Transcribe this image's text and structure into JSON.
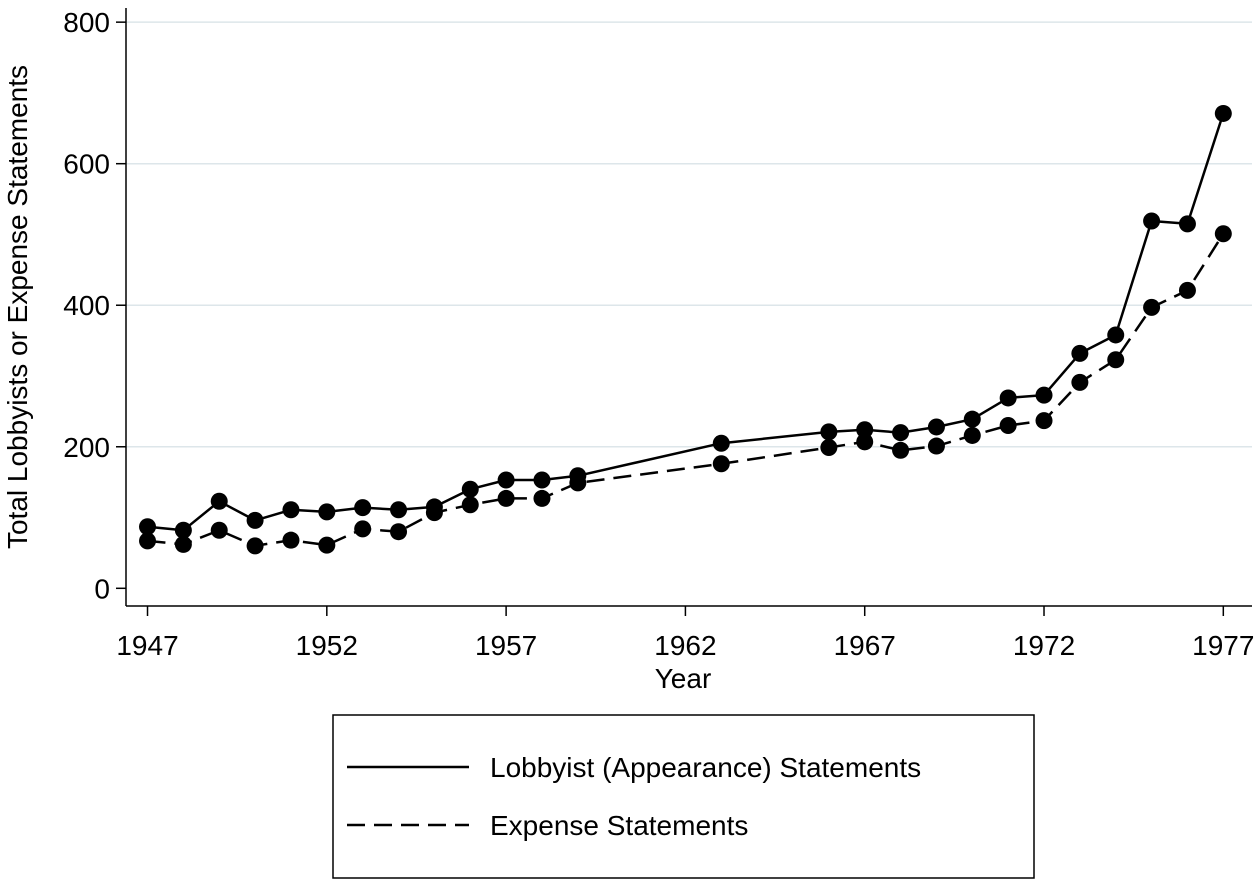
{
  "chart_data": {
    "type": "line",
    "xlabel": "Year",
    "ylabel": "Total Lobbyists or Expense Statements",
    "xlim": [
      1946.4,
      1977.8
    ],
    "ylim": [
      -25,
      820
    ],
    "xticks": [
      1947,
      1952,
      1957,
      1962,
      1967,
      1972,
      1977
    ],
    "yticks": [
      0,
      200,
      400,
      600,
      800
    ],
    "grid": "horizontal",
    "legend": "bottom",
    "series": [
      {
        "name": "Lobbyist (Appearance) Statements",
        "line": "solid",
        "color": "#000000",
        "x": [
          1947,
          1948,
          1949,
          1950,
          1951,
          1952,
          1953,
          1954,
          1955,
          1956,
          1957,
          1958,
          1959,
          1963,
          1966,
          1967,
          1968,
          1969,
          1970,
          1971,
          1972,
          1973,
          1974,
          1975,
          1976,
          1977
        ],
        "y": [
          87,
          82,
          123,
          96,
          111,
          108,
          114,
          111,
          115,
          140,
          153,
          153,
          159,
          205,
          221,
          224,
          220,
          228,
          239,
          269,
          273,
          332,
          358,
          519,
          515,
          671
        ]
      },
      {
        "name": "Expense Statements",
        "line": "dashed",
        "color": "#000000",
        "x": [
          1947,
          1948,
          1949,
          1950,
          1951,
          1952,
          1953,
          1954,
          1955,
          1956,
          1957,
          1958,
          1959,
          1963,
          1966,
          1967,
          1968,
          1969,
          1970,
          1971,
          1972,
          1973,
          1974,
          1975,
          1976,
          1977
        ],
        "y": [
          67,
          62,
          82,
          60,
          68,
          61,
          84,
          80,
          107,
          118,
          127,
          127,
          149,
          176,
          199,
          207,
          195,
          201,
          216,
          230,
          237,
          291,
          323,
          397,
          421,
          501
        ]
      }
    ]
  }
}
